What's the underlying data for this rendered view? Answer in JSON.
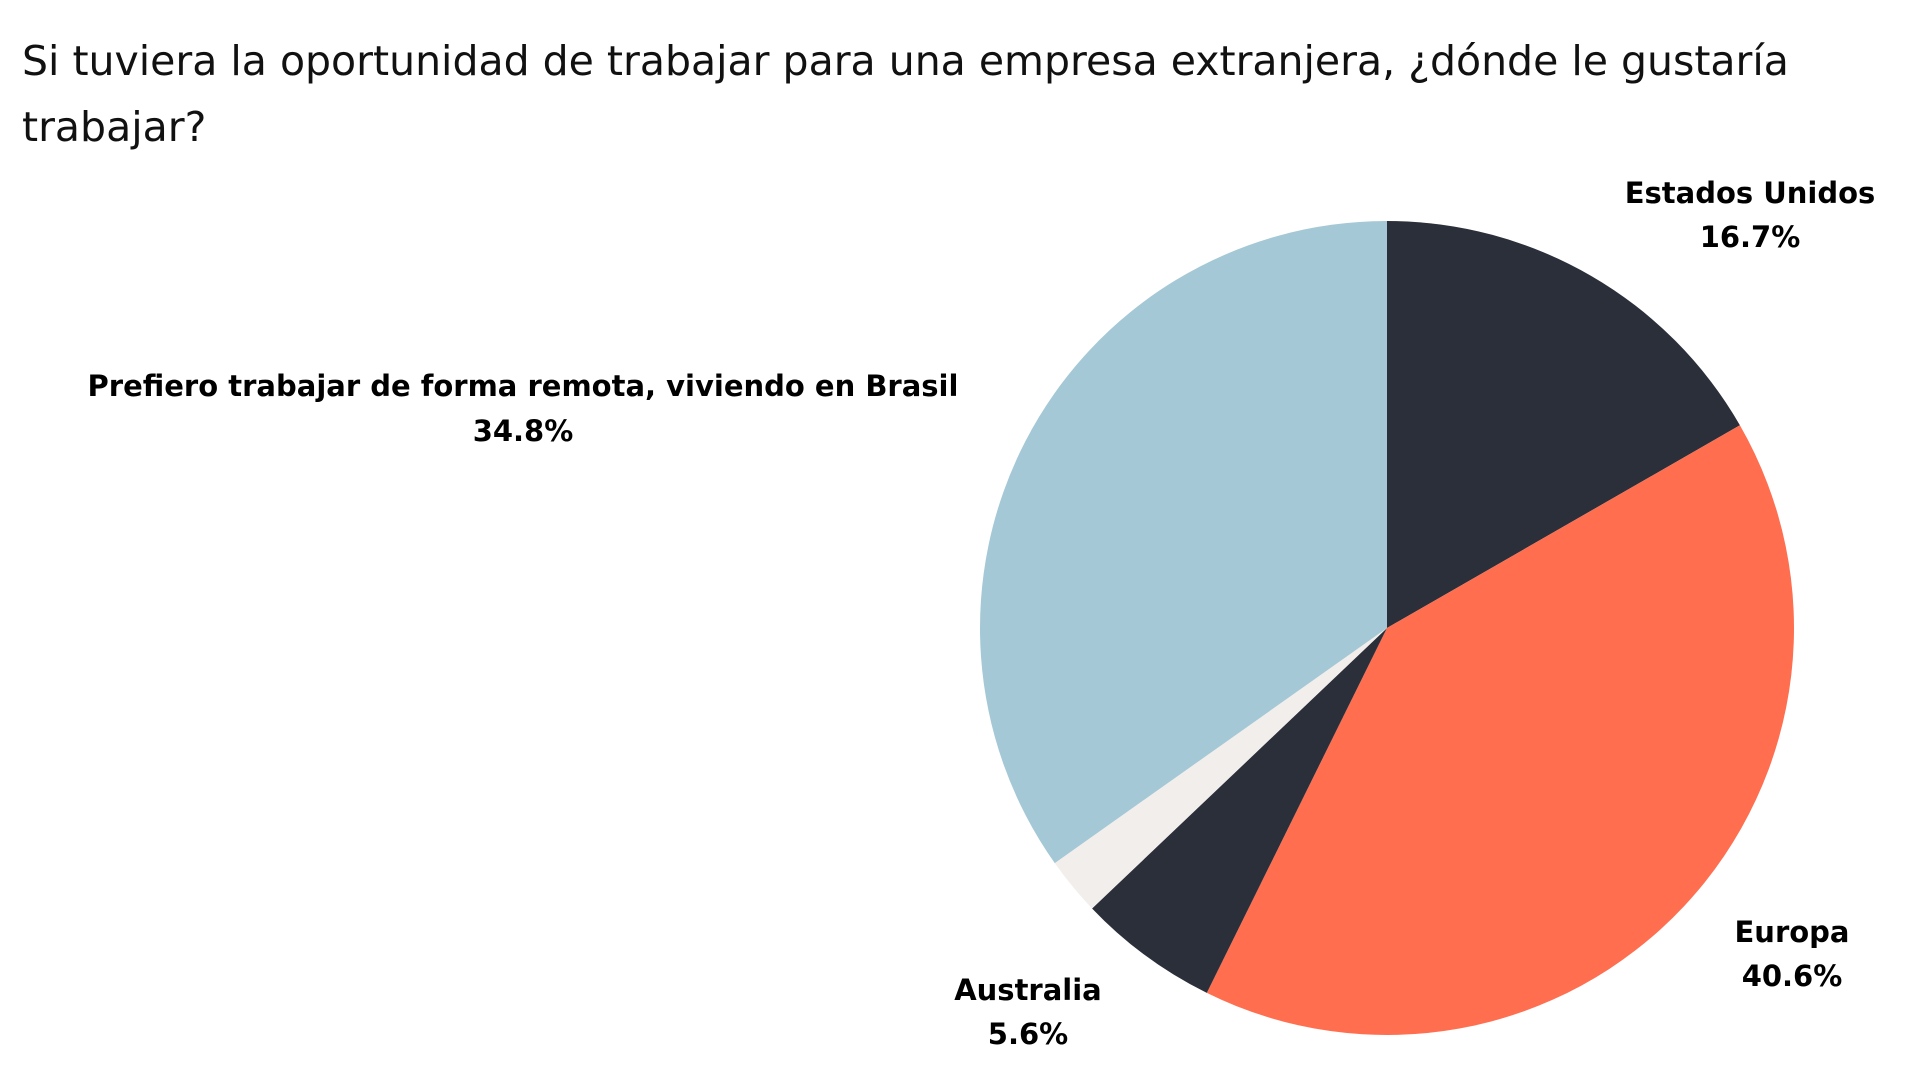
{
  "chart_data": {
    "type": "pie",
    "title": "Si tuviera la oportunidad de trabajar para una empresa extranjera, ¿dónde le gustaría trabajar?",
    "start_angle_deg": 0,
    "direction": "clockwise",
    "slices": [
      {
        "name": "Estados Unidos",
        "value": 16.7,
        "label": "16.7%",
        "color": "#2b2f3a",
        "labeled": true
      },
      {
        "name": "Europa",
        "value": 40.6,
        "label": "40.6%",
        "color": "#ff6e4f",
        "labeled": true
      },
      {
        "name": "Australia",
        "value": 5.6,
        "label": "5.6%",
        "color": "#2b2f3a",
        "labeled": true
      },
      {
        "name": "",
        "value": 2.3,
        "label": "",
        "color": "#f2eeeb",
        "labeled": false
      },
      {
        "name": "Prefiero trabajar de forma remota, viviendo en Brasil",
        "value": 34.8,
        "label": "34.8%",
        "color": "#a4c8d5",
        "labeled": true
      }
    ]
  }
}
